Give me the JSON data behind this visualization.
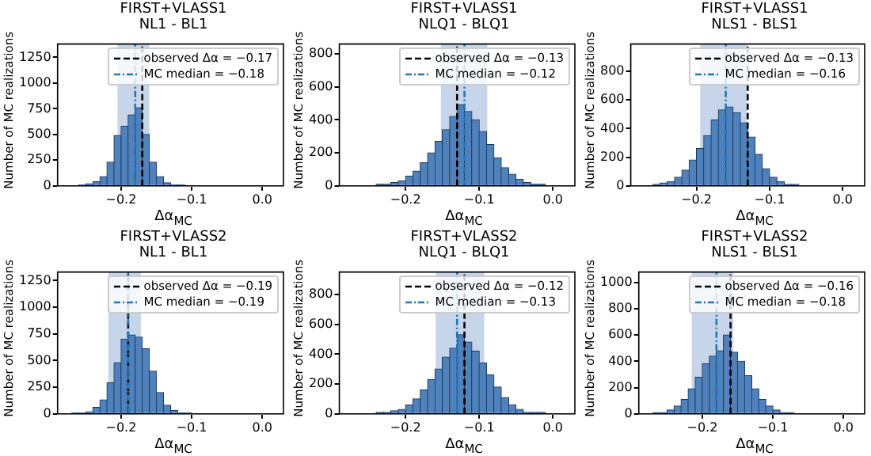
{
  "chart_data": [
    {
      "type": "histogram",
      "title": "FIRST+VLASS1",
      "subtitle": "NL1 - BL1",
      "xlabel": "Δα$_{MC}$",
      "ylabel": "Number of MC realizations",
      "color": "#4f81bd",
      "legend": "top right",
      "grid": false,
      "bins": [
        -0.26,
        -0.25,
        -0.24,
        -0.23,
        -0.22,
        -0.21,
        -0.2,
        -0.19,
        -0.18,
        -0.17,
        -0.16,
        -0.15,
        -0.14,
        -0.13,
        -0.12,
        -0.11
      ],
      "values": [
        10,
        20,
        40,
        90,
        230,
        490,
        580,
        690,
        760,
        500,
        230,
        90,
        30,
        10,
        10
      ],
      "xlim": [
        -0.29,
        0.03
      ],
      "xticks": [
        {
          "value": -0.2,
          "label": "−0.2"
        },
        {
          "value": -0.1,
          "label": "−0.1"
        },
        {
          "value": 0,
          "label": "0.0"
        }
      ],
      "ylim": [
        0,
        1380
      ],
      "yticks": [
        0,
        250,
        500,
        750,
        1000,
        1250
      ],
      "bands": [
        {
          "axis": "x",
          "from": -0.205,
          "to": -0.16,
          "color": "#c6d5ea"
        }
      ],
      "ref_lines": [
        {
          "axis": "x",
          "value": -0.17,
          "label": "observed Δα = −0.17",
          "color": "#000000",
          "line_style": "dashed"
        },
        {
          "axis": "x",
          "value": -0.18,
          "label": "MC median = −0.18",
          "color": "#1f77b4",
          "line_style": "dashdot"
        }
      ]
    },
    {
      "type": "histogram",
      "title": "FIRST+VLASS1",
      "subtitle": "NLQ1 - BLQ1",
      "xlabel": "Δα$_{MC}$",
      "ylabel": "Number of MC realizations",
      "color": "#4f81bd",
      "legend": "top right",
      "grid": false,
      "bins": [
        -0.24,
        -0.23,
        -0.22,
        -0.21,
        -0.2,
        -0.19,
        -0.18,
        -0.17,
        -0.16,
        -0.15,
        -0.14,
        -0.13,
        -0.12,
        -0.11,
        -0.1,
        -0.09,
        -0.08,
        -0.07,
        -0.06,
        -0.05,
        -0.04,
        -0.03,
        -0.02,
        -0.01
      ],
      "values": [
        10,
        10,
        20,
        30,
        60,
        90,
        140,
        200,
        270,
        340,
        420,
        490,
        450,
        400,
        330,
        250,
        170,
        110,
        70,
        40,
        20,
        10,
        10
      ],
      "xlim": [
        -0.29,
        0.03
      ],
      "xticks": [
        {
          "value": -0.2,
          "label": "−0.2"
        },
        {
          "value": -0.1,
          "label": "−0.1"
        },
        {
          "value": 0,
          "label": "0.0"
        }
      ],
      "ylim": [
        0,
        860
      ],
      "yticks": [
        0,
        200,
        400,
        600,
        800
      ],
      "bands": [
        {
          "axis": "x",
          "from": -0.152,
          "to": -0.089,
          "color": "#c6d5ea"
        }
      ],
      "ref_lines": [
        {
          "axis": "x",
          "value": -0.13,
          "label": "observed Δα = −0.13",
          "color": "#000000",
          "line_style": "dashed"
        },
        {
          "axis": "x",
          "value": -0.12,
          "label": "MC median = −0.12",
          "color": "#1f77b4",
          "line_style": "dashdot"
        }
      ]
    },
    {
      "type": "histogram",
      "title": "FIRST+VLASS1",
      "subtitle": "NLS1 - BLS1",
      "xlabel": "Δα$_{MC}$",
      "ylabel": "Number of MC realizations",
      "color": "#4f81bd",
      "legend": "top right",
      "grid": false,
      "bins": [
        -0.26,
        -0.25,
        -0.24,
        -0.23,
        -0.22,
        -0.21,
        -0.2,
        -0.19,
        -0.18,
        -0.17,
        -0.16,
        -0.15,
        -0.14,
        -0.13,
        -0.12,
        -0.11,
        -0.1,
        -0.09,
        -0.08,
        -0.07,
        -0.06
      ],
      "values": [
        10,
        20,
        30,
        60,
        110,
        180,
        260,
        350,
        460,
        530,
        550,
        510,
        440,
        340,
        220,
        120,
        60,
        30,
        10,
        10
      ],
      "xlim": [
        -0.29,
        0.03
      ],
      "xticks": [
        {
          "value": -0.2,
          "label": "−0.2"
        },
        {
          "value": -0.1,
          "label": "−0.1"
        },
        {
          "value": 0,
          "label": "0.0"
        }
      ],
      "ylim": [
        0,
        990
      ],
      "yticks": [
        0,
        200,
        400,
        600,
        800
      ],
      "bands": [
        {
          "axis": "x",
          "from": -0.195,
          "to": -0.131,
          "color": "#c6d5ea"
        }
      ],
      "ref_lines": [
        {
          "axis": "x",
          "value": -0.13,
          "label": "observed Δα = −0.13",
          "color": "#000000",
          "line_style": "dashed"
        },
        {
          "axis": "x",
          "value": -0.16,
          "label": "MC median = −0.16",
          "color": "#1f77b4",
          "line_style": "dashdot"
        }
      ]
    },
    {
      "type": "histogram",
      "title": "FIRST+VLASS2",
      "subtitle": "NL1 - BL1",
      "xlabel": "Δα$_{MC}$",
      "ylabel": "Number of MC realizations",
      "color": "#4f81bd",
      "legend": "top right",
      "grid": false,
      "bins": [
        -0.27,
        -0.26,
        -0.25,
        -0.24,
        -0.23,
        -0.22,
        -0.21,
        -0.2,
        -0.19,
        -0.18,
        -0.17,
        -0.16,
        -0.15,
        -0.14,
        -0.13,
        -0.12,
        -0.11,
        -0.1
      ],
      "values": [
        10,
        10,
        20,
        60,
        130,
        290,
        480,
        700,
        740,
        720,
        610,
        400,
        200,
        80,
        30,
        10,
        10
      ],
      "xlim": [
        -0.29,
        0.03
      ],
      "xticks": [
        {
          "value": -0.2,
          "label": "−0.2"
        },
        {
          "value": -0.1,
          "label": "−0.1"
        },
        {
          "value": 0,
          "label": "0.0"
        }
      ],
      "ylim": [
        0,
        1330
      ],
      "yticks": [
        0,
        250,
        500,
        750,
        1000,
        1250
      ],
      "bands": [
        {
          "axis": "x",
          "from": -0.218,
          "to": -0.172,
          "color": "#c6d5ea"
        }
      ],
      "ref_lines": [
        {
          "axis": "x",
          "value": -0.19,
          "label": "observed Δα = −0.19",
          "color": "#000000",
          "line_style": "dashed"
        },
        {
          "axis": "x",
          "value": -0.19,
          "label": "MC median = −0.19",
          "color": "#1f77b4",
          "line_style": "dashdot"
        }
      ]
    },
    {
      "type": "histogram",
      "title": "FIRST+VLASS2",
      "subtitle": "NLQ1 - BLQ1",
      "xlabel": "Δα$_{MC}$",
      "ylabel": "Number of MC realizations",
      "color": "#4f81bd",
      "legend": "top right",
      "grid": false,
      "bins": [
        -0.24,
        -0.23,
        -0.22,
        -0.21,
        -0.2,
        -0.19,
        -0.18,
        -0.17,
        -0.16,
        -0.15,
        -0.14,
        -0.13,
        -0.12,
        -0.11,
        -0.1,
        -0.09,
        -0.08,
        -0.07,
        -0.06,
        -0.05,
        -0.04,
        -0.03,
        -0.02,
        -0.01
      ],
      "values": [
        10,
        10,
        20,
        30,
        60,
        100,
        160,
        230,
        300,
        380,
        440,
        530,
        480,
        420,
        340,
        260,
        180,
        110,
        60,
        30,
        10,
        10,
        10
      ],
      "xlim": [
        -0.29,
        0.03
      ],
      "xticks": [
        {
          "value": -0.2,
          "label": "−0.2"
        },
        {
          "value": -0.1,
          "label": "−0.1"
        },
        {
          "value": 0,
          "label": "0.0"
        }
      ],
      "ylim": [
        0,
        950
      ],
      "yticks": [
        0,
        200,
        400,
        600,
        800
      ],
      "bands": [
        {
          "axis": "x",
          "from": -0.159,
          "to": -0.093,
          "color": "#c6d5ea"
        }
      ],
      "ref_lines": [
        {
          "axis": "x",
          "value": -0.12,
          "label": "observed Δα = −0.12",
          "color": "#000000",
          "line_style": "dashed"
        },
        {
          "axis": "x",
          "value": -0.13,
          "label": "MC median = −0.13",
          "color": "#1f77b4",
          "line_style": "dashdot"
        }
      ]
    },
    {
      "type": "histogram",
      "title": "FIRST+VLASS2",
      "subtitle": "NLS1 - BLS1",
      "xlabel": "Δα$_{MC}$",
      "ylabel": "Number of MC realizations",
      "color": "#4f81bd",
      "legend": "top right",
      "grid": false,
      "bins": [
        -0.27,
        -0.26,
        -0.25,
        -0.24,
        -0.23,
        -0.22,
        -0.21,
        -0.2,
        -0.19,
        -0.18,
        -0.17,
        -0.16,
        -0.15,
        -0.14,
        -0.13,
        -0.12,
        -0.11,
        -0.1,
        -0.09,
        -0.08,
        -0.07
      ],
      "values": [
        10,
        10,
        30,
        60,
        110,
        190,
        280,
        380,
        440,
        480,
        600,
        470,
        400,
        290,
        190,
        110,
        60,
        30,
        10,
        10
      ],
      "xlim": [
        -0.29,
        0.03
      ],
      "xticks": [
        {
          "value": -0.2,
          "label": "−0.2"
        },
        {
          "value": -0.1,
          "label": "−0.1"
        },
        {
          "value": 0,
          "label": "0.0"
        }
      ],
      "ylim": [
        0,
        1080
      ],
      "yticks": [
        0,
        200,
        400,
        600,
        800,
        1000
      ],
      "bands": [
        {
          "axis": "x",
          "from": -0.215,
          "to": -0.156,
          "color": "#c6d5ea"
        }
      ],
      "ref_lines": [
        {
          "axis": "x",
          "value": -0.16,
          "label": "observed Δα = −0.16",
          "color": "#000000",
          "line_style": "dashed"
        },
        {
          "axis": "x",
          "value": -0.18,
          "label": "MC median = −0.18",
          "color": "#1f77b4",
          "line_style": "dashdot"
        }
      ]
    }
  ]
}
